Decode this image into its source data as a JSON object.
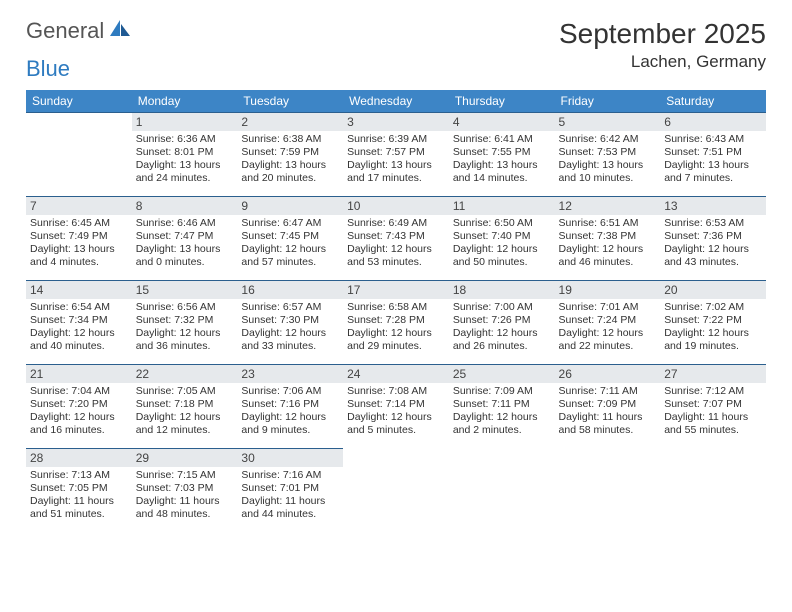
{
  "logo": {
    "text1": "General",
    "text2": "Blue"
  },
  "title": {
    "month": "September 2025",
    "location": "Lachen, Germany"
  },
  "style": {
    "header_bg": "#3d85c6",
    "header_fg": "#ffffff",
    "daybar_bg": "#e6e9ec",
    "row_border": "#2b5f8e",
    "text_color": "#333333",
    "logo_gray": "#555555",
    "logo_blue": "#2e7bc0",
    "background": "#ffffff",
    "title_fontsize": 28,
    "loc_fontsize": 17,
    "dayhead_fontsize": 12,
    "cell_fontsize": 10.5
  },
  "day_headers": [
    "Sunday",
    "Monday",
    "Tuesday",
    "Wednesday",
    "Thursday",
    "Friday",
    "Saturday"
  ],
  "weeks": [
    [
      null,
      {
        "n": "1",
        "sr": "6:36 AM",
        "ss": "8:01 PM",
        "dl": "13 hours and 24 minutes."
      },
      {
        "n": "2",
        "sr": "6:38 AM",
        "ss": "7:59 PM",
        "dl": "13 hours and 20 minutes."
      },
      {
        "n": "3",
        "sr": "6:39 AM",
        "ss": "7:57 PM",
        "dl": "13 hours and 17 minutes."
      },
      {
        "n": "4",
        "sr": "6:41 AM",
        "ss": "7:55 PM",
        "dl": "13 hours and 14 minutes."
      },
      {
        "n": "5",
        "sr": "6:42 AM",
        "ss": "7:53 PM",
        "dl": "13 hours and 10 minutes."
      },
      {
        "n": "6",
        "sr": "6:43 AM",
        "ss": "7:51 PM",
        "dl": "13 hours and 7 minutes."
      }
    ],
    [
      {
        "n": "7",
        "sr": "6:45 AM",
        "ss": "7:49 PM",
        "dl": "13 hours and 4 minutes."
      },
      {
        "n": "8",
        "sr": "6:46 AM",
        "ss": "7:47 PM",
        "dl": "13 hours and 0 minutes."
      },
      {
        "n": "9",
        "sr": "6:47 AM",
        "ss": "7:45 PM",
        "dl": "12 hours and 57 minutes."
      },
      {
        "n": "10",
        "sr": "6:49 AM",
        "ss": "7:43 PM",
        "dl": "12 hours and 53 minutes."
      },
      {
        "n": "11",
        "sr": "6:50 AM",
        "ss": "7:40 PM",
        "dl": "12 hours and 50 minutes."
      },
      {
        "n": "12",
        "sr": "6:51 AM",
        "ss": "7:38 PM",
        "dl": "12 hours and 46 minutes."
      },
      {
        "n": "13",
        "sr": "6:53 AM",
        "ss": "7:36 PM",
        "dl": "12 hours and 43 minutes."
      }
    ],
    [
      {
        "n": "14",
        "sr": "6:54 AM",
        "ss": "7:34 PM",
        "dl": "12 hours and 40 minutes."
      },
      {
        "n": "15",
        "sr": "6:56 AM",
        "ss": "7:32 PM",
        "dl": "12 hours and 36 minutes."
      },
      {
        "n": "16",
        "sr": "6:57 AM",
        "ss": "7:30 PM",
        "dl": "12 hours and 33 minutes."
      },
      {
        "n": "17",
        "sr": "6:58 AM",
        "ss": "7:28 PM",
        "dl": "12 hours and 29 minutes."
      },
      {
        "n": "18",
        "sr": "7:00 AM",
        "ss": "7:26 PM",
        "dl": "12 hours and 26 minutes."
      },
      {
        "n": "19",
        "sr": "7:01 AM",
        "ss": "7:24 PM",
        "dl": "12 hours and 22 minutes."
      },
      {
        "n": "20",
        "sr": "7:02 AM",
        "ss": "7:22 PM",
        "dl": "12 hours and 19 minutes."
      }
    ],
    [
      {
        "n": "21",
        "sr": "7:04 AM",
        "ss": "7:20 PM",
        "dl": "12 hours and 16 minutes."
      },
      {
        "n": "22",
        "sr": "7:05 AM",
        "ss": "7:18 PM",
        "dl": "12 hours and 12 minutes."
      },
      {
        "n": "23",
        "sr": "7:06 AM",
        "ss": "7:16 PM",
        "dl": "12 hours and 9 minutes."
      },
      {
        "n": "24",
        "sr": "7:08 AM",
        "ss": "7:14 PM",
        "dl": "12 hours and 5 minutes."
      },
      {
        "n": "25",
        "sr": "7:09 AM",
        "ss": "7:11 PM",
        "dl": "12 hours and 2 minutes."
      },
      {
        "n": "26",
        "sr": "7:11 AM",
        "ss": "7:09 PM",
        "dl": "11 hours and 58 minutes."
      },
      {
        "n": "27",
        "sr": "7:12 AM",
        "ss": "7:07 PM",
        "dl": "11 hours and 55 minutes."
      }
    ],
    [
      {
        "n": "28",
        "sr": "7:13 AM",
        "ss": "7:05 PM",
        "dl": "11 hours and 51 minutes."
      },
      {
        "n": "29",
        "sr": "7:15 AM",
        "ss": "7:03 PM",
        "dl": "11 hours and 48 minutes."
      },
      {
        "n": "30",
        "sr": "7:16 AM",
        "ss": "7:01 PM",
        "dl": "11 hours and 44 minutes."
      },
      null,
      null,
      null,
      null
    ]
  ],
  "labels": {
    "sunrise": "Sunrise:",
    "sunset": "Sunset:",
    "daylight": "Daylight:"
  }
}
